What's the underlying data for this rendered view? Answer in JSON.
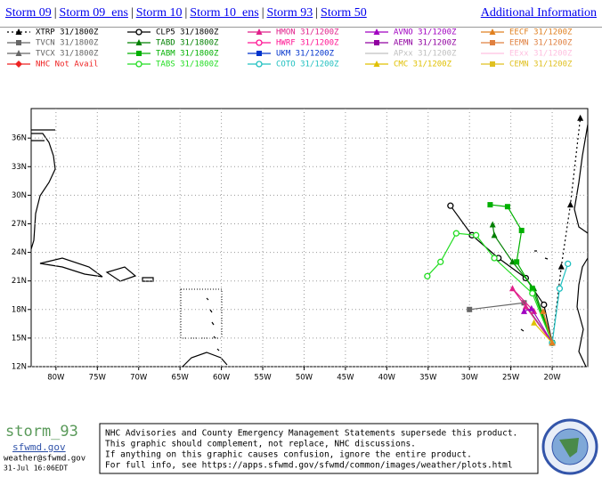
{
  "nav": {
    "links": [
      "Storm 09",
      "Storm 09_ens",
      "Storm 10",
      "Storm 10_ens",
      "Storm 93",
      "Storm 50"
    ],
    "separator": "|",
    "additional": "Additional Information"
  },
  "chart_data": {
    "type": "line",
    "xlim": [
      -83,
      -15.7
    ],
    "ylim": [
      12,
      39.1
    ],
    "xticks": [
      {
        "value": -80,
        "label": "80W"
      },
      {
        "value": -75,
        "label": "75W"
      },
      {
        "value": -70,
        "label": "70W"
      },
      {
        "value": -65,
        "label": "65W"
      },
      {
        "value": -60,
        "label": "60W"
      },
      {
        "value": -55,
        "label": "55W"
      },
      {
        "value": -50,
        "label": "50W"
      },
      {
        "value": -45,
        "label": "45W"
      },
      {
        "value": -40,
        "label": "40W"
      },
      {
        "value": -35,
        "label": "35W"
      },
      {
        "value": -30,
        "label": "30W"
      },
      {
        "value": -25,
        "label": "25W"
      },
      {
        "value": -20,
        "label": "20W"
      }
    ],
    "yticks": [
      {
        "value": 12,
        "label": "12N"
      },
      {
        "value": 15,
        "label": "15N"
      },
      {
        "value": 18,
        "label": "18N"
      },
      {
        "value": 21,
        "label": "21N"
      },
      {
        "value": 24,
        "label": "24N"
      },
      {
        "value": 27,
        "label": "27N"
      },
      {
        "value": 30,
        "label": "30N"
      },
      {
        "value": 33,
        "label": "33N"
      },
      {
        "value": 36,
        "label": "36N"
      }
    ],
    "grid": true,
    "series": [
      {
        "name": "XTRP 31/1800Z",
        "color": "#000000",
        "marker": "triangle",
        "dash": true,
        "x": [
          -20,
          -18.9,
          -17.8,
          -16.6
        ],
        "values": [
          14.5,
          22.5,
          29.0,
          38.1
        ]
      },
      {
        "name": "TVCN 31/1800Z",
        "color": "#666666",
        "marker": "square",
        "x": [
          -20,
          -23.4,
          -30
        ],
        "values": [
          14.5,
          18.7,
          18.0
        ]
      },
      {
        "name": "TVCX 31/1800Z",
        "color": "#666666",
        "marker": "triangle",
        "x": [],
        "values": []
      },
      {
        "name": "NHC Not Avail",
        "color": "#ee2222",
        "marker": "diamond",
        "x": [],
        "values": []
      },
      {
        "name": "CLP5 31/1800Z",
        "color": "#000000",
        "marker": "circle",
        "x": [
          -20,
          -21,
          -23.2,
          -26.5,
          -29.7,
          -32.3
        ],
        "values": [
          14.5,
          18.5,
          21.3,
          23.4,
          25.8,
          28.9
        ]
      },
      {
        "name": "TABD 31/1800Z",
        "color": "#008000",
        "marker": "triangle",
        "x": [
          -20,
          -22.2,
          -24.8,
          -27,
          -27.2
        ],
        "values": [
          14.5,
          20.2,
          23.0,
          25.8,
          26.9
        ]
      },
      {
        "name": "TABM 31/1800Z",
        "color": "#00b000",
        "marker": "square",
        "x": [
          -20,
          -22.4,
          -24.3,
          -23.7,
          -25.4,
          -27.5
        ],
        "values": [
          14.5,
          20.2,
          23.0,
          26.3,
          28.8,
          29.0
        ]
      },
      {
        "name": "TABS 31/1800Z",
        "color": "#22dd22",
        "marker": "circle",
        "x": [
          -20,
          -22.4,
          -27,
          -29.2,
          -31.6,
          -33.5,
          -35.1
        ],
        "values": [
          14.5,
          19.7,
          23.4,
          25.8,
          26.0,
          23.0,
          21.5
        ]
      },
      {
        "name": "HMON 31/1200Z",
        "color": "#e0208a",
        "marker": "triangle",
        "x": [
          -20,
          -23.2,
          -24.8,
          -22.2
        ],
        "values": [
          14.5,
          18.3,
          20.2,
          17.8
        ]
      },
      {
        "name": "HWRF 31/1200Z",
        "color": "#ff1493",
        "marker": "circle",
        "x": [],
        "values": []
      },
      {
        "name": "UKM 31/1200Z",
        "color": "#0033cc",
        "marker": "square",
        "x": [],
        "values": []
      },
      {
        "name": "COTO 31/1200Z",
        "color": "#20c0c0",
        "marker": "circle",
        "x": [
          -20,
          -19.1,
          -18.1
        ],
        "values": [
          14.5,
          20.2,
          22.8
        ]
      },
      {
        "name": "AVNO 31/1200Z",
        "color": "#a000c0",
        "marker": "triangle",
        "x": [
          -20,
          -22.5,
          -23.4
        ],
        "values": [
          14.5,
          18.1,
          17.8
        ]
      },
      {
        "name": "AEMN 31/1200Z",
        "color": "#9000a0",
        "marker": "square",
        "x": [],
        "values": []
      },
      {
        "name": "APxx 31/1200Z",
        "color": "#c0c0c0",
        "marker": "none",
        "x": [],
        "values": []
      },
      {
        "name": "CMC 31/1200Z",
        "color": "#e0c000",
        "marker": "triangle",
        "x": [
          -20,
          -22.2
        ],
        "values": [
          14.5,
          16.6
        ]
      },
      {
        "name": "EECF 31/1200Z",
        "color": "#e08020",
        "marker": "triangle",
        "x": [
          -20,
          -21.1
        ],
        "values": [
          14.5,
          17.8
        ]
      },
      {
        "name": "EEMN 31/1200Z",
        "color": "#e08040",
        "marker": "square",
        "x": [],
        "values": []
      },
      {
        "name": "EExx 31/1200Z",
        "color": "#ffc0e0",
        "marker": "none",
        "x": [],
        "values": []
      },
      {
        "name": "CEMN 31/1200Z",
        "color": "#e0c020",
        "marker": "square",
        "x": [],
        "values": []
      }
    ]
  },
  "footer": {
    "storm": "storm_93",
    "site": "sfwmd.gov",
    "email": "weather@sfwmd.gov",
    "timestamp": "31-Jul 16:06EDT",
    "notice": [
      "NHC Advisories and County Emergency Management Statements supersede this product.",
      "This graphic should complement, not replace, NHC discussions.",
      "If anything on this graphic causes confusion, ignore the entire product.",
      "For full info, see  https://apps.sfwmd.gov/sfwmd/common/images/weather/plots.html"
    ]
  }
}
